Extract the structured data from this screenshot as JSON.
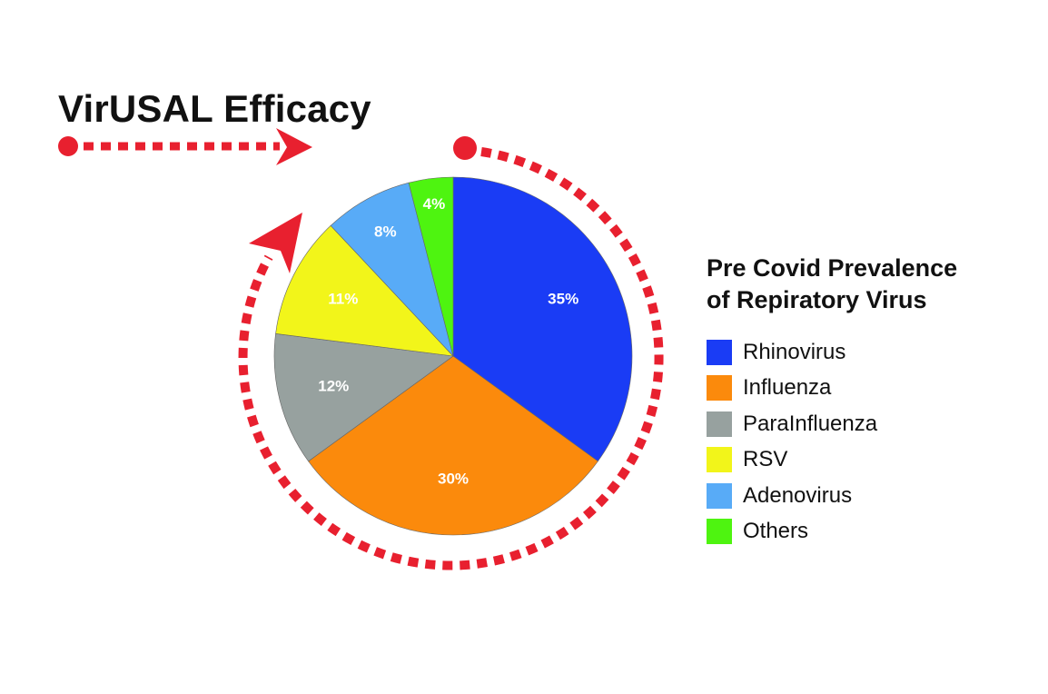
{
  "chart_data": {
    "type": "pie",
    "title": "VirUSAL Efficacy",
    "legend_title": "Pre Covid Prevalence\nof Repiratory Virus",
    "legend_placement": "right",
    "slices": [
      {
        "label": "Rhinovirus",
        "value": 35,
        "display": "35%",
        "color": "#1a3cf5"
      },
      {
        "label": "Influenza",
        "value": 30,
        "display": "30%",
        "color": "#fb8a0c"
      },
      {
        "label": "ParaInfluenza",
        "value": 12,
        "display": "12%",
        "color": "#97a19f"
      },
      {
        "label": "RSV",
        "value": 11,
        "display": "11%",
        "color": "#f2f51a"
      },
      {
        "label": "Adenovirus",
        "value": 8,
        "display": "8%",
        "color": "#58abf7"
      },
      {
        "label": "Others",
        "value": 4,
        "display": "4%",
        "color": "#4ef410"
      }
    ],
    "accent_color": "#e8202f",
    "decoration_icons": [
      "dotted-arrow-icon",
      "dotted-circular-arrow-icon"
    ]
  }
}
